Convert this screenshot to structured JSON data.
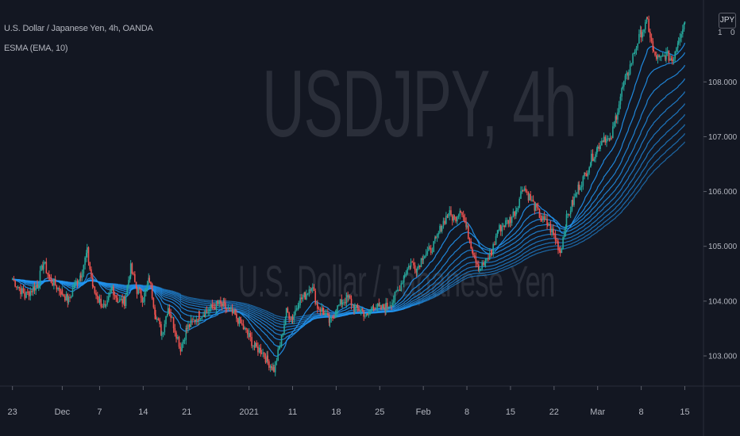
{
  "legend": {
    "symbol_line": "U.S. Dollar / Japanese Yen, 4h, OANDA",
    "indicator_line": "ESMA (EMA, 10)"
  },
  "watermark": {
    "main": "USDJPY, 4h",
    "sub": "U.S. Dollar / Japanese Yen"
  },
  "currency_badge": "JPY",
  "colors": {
    "background": "#131722",
    "up_candle": "#26a69a",
    "down_candle": "#ef5350",
    "ema_ribbon": "#2196f3"
  },
  "chart_data": {
    "type": "candlestick",
    "symbol": "USDJPY",
    "interval": "4h",
    "y_axis": {
      "ticks": [
        103.0,
        104.0,
        105.0,
        106.0,
        107.0,
        108.0
      ],
      "tick_labels": [
        "103.000",
        "104.000",
        "105.000",
        "106.000",
        "107.000",
        "108.000"
      ],
      "range": [
        102.45,
        109.35
      ],
      "edge_labels": [
        "1",
        "0"
      ]
    },
    "x_axis": {
      "tick_labels": [
        "23",
        "Dec",
        "7",
        "14",
        "21",
        "2021",
        "11",
        "18",
        "25",
        "Feb",
        "8",
        "15",
        "22",
        "Mar",
        "8",
        "15"
      ],
      "tick_values": [
        0,
        8,
        14,
        21,
        28,
        38,
        45,
        52,
        59,
        66,
        73,
        80,
        87,
        94,
        101,
        108
      ],
      "range": [
        -2,
        111
      ]
    },
    "series": [
      {
        "name": "USDJPY",
        "kind": "close",
        "points": [
          [
            0,
            104.4
          ],
          [
            2,
            104.1
          ],
          [
            4,
            104.3
          ],
          [
            5,
            104.7
          ],
          [
            6,
            104.4
          ],
          [
            8,
            104.15
          ],
          [
            9,
            104.0
          ],
          [
            10,
            104.3
          ],
          [
            11,
            104.5
          ],
          [
            12,
            104.9
          ],
          [
            13,
            104.2
          ],
          [
            14,
            104.0
          ],
          [
            15,
            103.85
          ],
          [
            16,
            104.25
          ],
          [
            17,
            104.0
          ],
          [
            18,
            104.0
          ],
          [
            19,
            104.6
          ],
          [
            20,
            104.2
          ],
          [
            21,
            104.05
          ],
          [
            22,
            104.4
          ],
          [
            23,
            103.75
          ],
          [
            24,
            103.4
          ],
          [
            25,
            103.9
          ],
          [
            27,
            103.15
          ],
          [
            28,
            103.5
          ],
          [
            30,
            103.75
          ],
          [
            31,
            103.8
          ],
          [
            33,
            103.95
          ],
          [
            34,
            103.9
          ],
          [
            36,
            103.7
          ],
          [
            38,
            103.35
          ],
          [
            39,
            103.15
          ],
          [
            40,
            103.1
          ],
          [
            41,
            102.9
          ],
          [
            42,
            102.75
          ],
          [
            43,
            103.2
          ],
          [
            44,
            103.8
          ],
          [
            45,
            103.7
          ],
          [
            46,
            104.0
          ],
          [
            47,
            104.1
          ],
          [
            48,
            104.3
          ],
          [
            49,
            103.9
          ],
          [
            50,
            103.8
          ],
          [
            51,
            103.6
          ],
          [
            52,
            103.85
          ],
          [
            53,
            104.0
          ],
          [
            54,
            104.05
          ],
          [
            55,
            103.85
          ],
          [
            56,
            103.85
          ],
          [
            57,
            103.7
          ],
          [
            58,
            103.95
          ],
          [
            59,
            103.85
          ],
          [
            60,
            103.9
          ],
          [
            61,
            104.0
          ],
          [
            62,
            104.2
          ],
          [
            63,
            104.5
          ],
          [
            64,
            104.7
          ],
          [
            65,
            104.6
          ],
          [
            66,
            104.85
          ],
          [
            67,
            104.9
          ],
          [
            68,
            105.1
          ],
          [
            69,
            105.4
          ],
          [
            70,
            105.6
          ],
          [
            71,
            105.5
          ],
          [
            72,
            105.7
          ],
          [
            73,
            105.3
          ],
          [
            74,
            104.9
          ],
          [
            75,
            104.6
          ],
          [
            76,
            104.7
          ],
          [
            77,
            104.9
          ],
          [
            78,
            105.3
          ],
          [
            79,
            105.4
          ],
          [
            80,
            105.5
          ],
          [
            81,
            105.7
          ],
          [
            82,
            106.1
          ],
          [
            83,
            105.9
          ],
          [
            84,
            105.7
          ],
          [
            85,
            105.5
          ],
          [
            86,
            105.4
          ],
          [
            87,
            105.2
          ],
          [
            88,
            104.9
          ],
          [
            89,
            105.5
          ],
          [
            90,
            105.8
          ],
          [
            91,
            106.1
          ],
          [
            92,
            106.3
          ],
          [
            93,
            106.6
          ],
          [
            94,
            106.8
          ],
          [
            95,
            107.0
          ],
          [
            96,
            106.9
          ],
          [
            97,
            107.4
          ],
          [
            98,
            107.9
          ],
          [
            99,
            108.2
          ],
          [
            100,
            108.6
          ],
          [
            101,
            108.9
          ],
          [
            102,
            109.1
          ],
          [
            103,
            108.5
          ],
          [
            104,
            108.4
          ],
          [
            105,
            108.5
          ],
          [
            106,
            108.4
          ],
          [
            107,
            108.8
          ],
          [
            108,
            109.1
          ]
        ]
      },
      {
        "kind": "ema_ribbon",
        "lines": 10,
        "style": "fan"
      }
    ]
  }
}
